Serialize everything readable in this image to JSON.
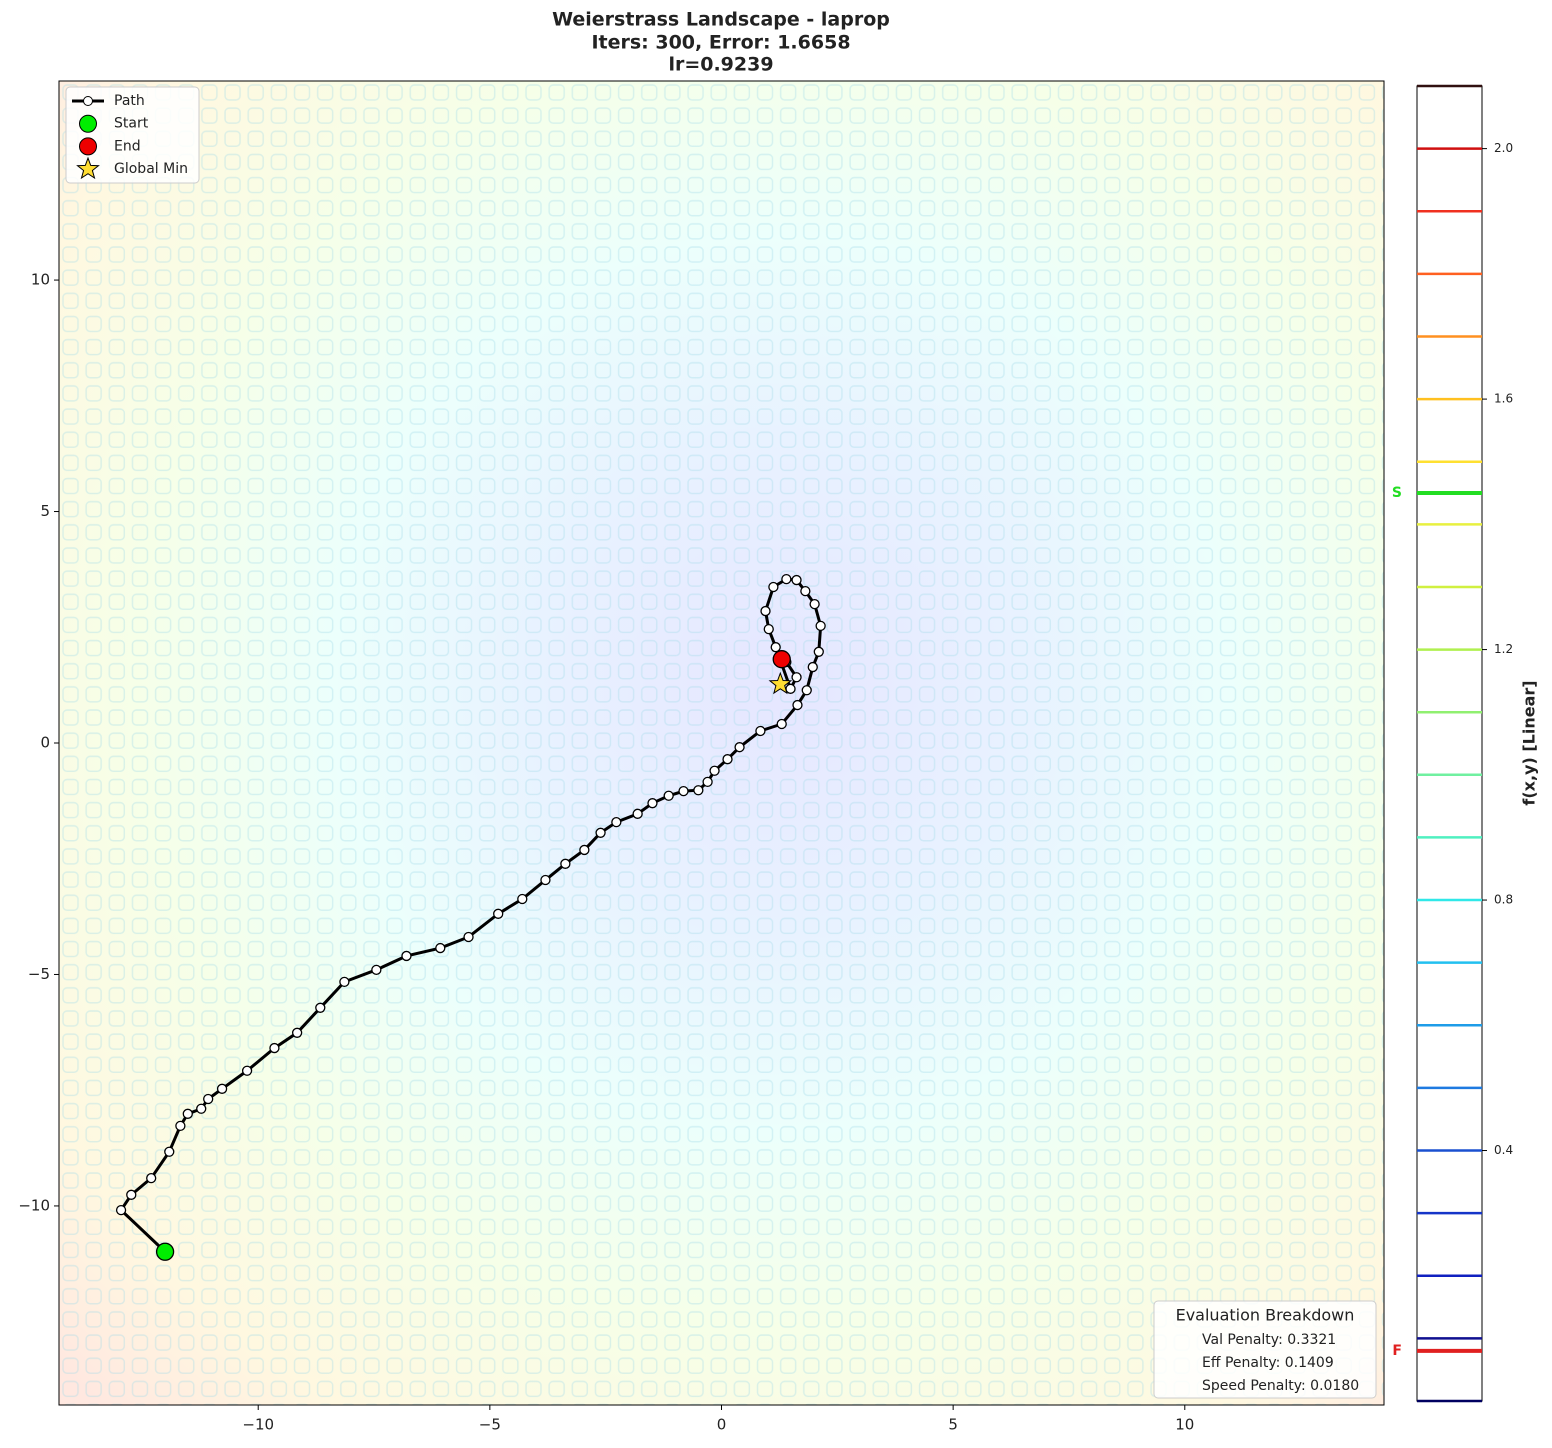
{
  "chart_data": {
    "type": "contour",
    "title": [
      "Weierstrass Landscape - laprop",
      "Iters: 300, Error: 1.6658",
      "lr=0.9239"
    ],
    "xlim": [
      -14.3,
      14.3
    ],
    "ylim": [
      -14.3,
      14.3
    ],
    "xticks": [
      {
        "value": -10,
        "label": "−10"
      },
      {
        "value": -5,
        "label": "−5"
      },
      0,
      5,
      10
    ],
    "yticks": [
      {
        "value": -10,
        "label": "−10"
      },
      {
        "value": -5,
        "label": "−5"
      },
      0,
      5,
      10
    ],
    "series": [
      {
        "name": "Path",
        "color": "#000000",
        "x": [
          -12.01,
          -12.96,
          -12.74,
          -12.31,
          -11.92,
          -11.68,
          -11.52,
          -11.23,
          -11.08,
          -10.78,
          -10.24,
          -9.65,
          -9.16,
          -8.66,
          -8.14,
          -7.45,
          -6.8,
          -6.07,
          -5.46,
          -4.82,
          -4.3,
          -3.8,
          -3.37,
          -2.96,
          -2.61,
          -2.27,
          -1.81,
          -1.49,
          -1.14,
          -0.82,
          -0.5,
          -0.3,
          -0.15,
          0.13,
          0.39,
          0.84,
          1.3,
          1.64,
          1.84,
          1.97,
          2.1,
          2.14,
          2.01,
          1.81,
          1.62,
          1.4,
          1.12,
          0.95,
          1.02,
          1.17,
          1.49,
          1.62,
          1.4,
          1.3
        ],
        "y": [
          -10.99,
          -10.09,
          -9.76,
          -9.4,
          -8.83,
          -8.27,
          -8.01,
          -7.9,
          -7.69,
          -7.47,
          -7.08,
          -6.59,
          -6.26,
          -5.72,
          -5.16,
          -4.9,
          -4.6,
          -4.43,
          -4.19,
          -3.69,
          -3.37,
          -2.96,
          -2.61,
          -2.31,
          -1.94,
          -1.71,
          -1.53,
          -1.3,
          -1.14,
          -1.04,
          -1.02,
          -0.84,
          -0.6,
          -0.35,
          -0.09,
          0.26,
          0.41,
          0.82,
          1.14,
          1.64,
          1.97,
          2.53,
          3.0,
          3.28,
          3.52,
          3.54,
          3.37,
          2.85,
          2.46,
          2.07,
          1.17,
          1.42,
          1.75,
          1.81
        ]
      },
      {
        "name": "Start",
        "color": "#00ee00",
        "x": [
          -12.01
        ],
        "y": [
          -10.99
        ]
      },
      {
        "name": "End",
        "color": "#ee0000",
        "x": [
          1.3
        ],
        "y": [
          1.81
        ]
      },
      {
        "name": "Global Min",
        "color": "#ffdd33",
        "x": [
          1.27
        ],
        "y": [
          1.27
        ]
      }
    ],
    "colorbar": {
      "label": "f(x,y) [Linear]",
      "lim": [
        0,
        2.1
      ],
      "ticks": [
        0.4,
        0.8,
        1.2,
        1.6,
        {
          "value": 2.0,
          "label": "2.0"
        }
      ],
      "levels": [
        0,
        0.1,
        0.2,
        0.3,
        0.4,
        0.5,
        0.6,
        0.7,
        0.8,
        0.9,
        1.0,
        1.1,
        1.2,
        1.3,
        1.4,
        1.5,
        1.6,
        1.7,
        1.8,
        1.9,
        2.0,
        2.1
      ],
      "level_colors": [
        "#000060",
        "#101090",
        "#1020c0",
        "#1535c8",
        "#1a50d0",
        "#1e7ae0",
        "#1e9ce8",
        "#22c0f0",
        "#30e8e8",
        "#50f0c0",
        "#70f0a0",
        "#90f070",
        "#b0f050",
        "#d0f040",
        "#e8f040",
        "#ffe030",
        "#ffc020",
        "#ff9020",
        "#ff6020",
        "#f03020",
        "#d01010",
        "#301010"
      ],
      "markers": [
        {
          "label": "S",
          "value": 1.45,
          "color": "#22dd22"
        },
        {
          "label": "F",
          "value": 0.08,
          "color": "#e02020"
        }
      ]
    },
    "annotation": {
      "title": "Evaluation Breakdown",
      "lines": [
        "Val Penalty: 0.3321",
        "Eff Penalty: 0.1409",
        "Speed Penalty: 0.0180"
      ]
    }
  }
}
